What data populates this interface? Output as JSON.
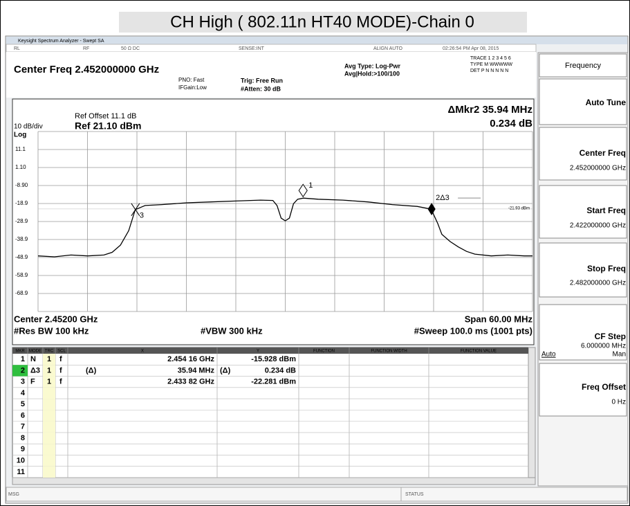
{
  "screen": {
    "title": "CH High ( 802.11n HT40 MODE)-Chain 0",
    "window_title": "Keysight Spectrum Analyzer - Swept SA",
    "toolbar": [
      "RL",
      "RF",
      "50 Ω DC",
      "SENSE:INT",
      "ALIGN AUTO",
      "02:26:54 PM Apr 08, 2015"
    ],
    "header": {
      "center_freq": "Center Freq 2.452000000 GHz",
      "pno": "PNO: Fast",
      "ifgain": "IFGain:Low",
      "trig": "Trig: Free Run",
      "atten": "#Atten: 30 dB",
      "avg_type": "Avg Type: Log-Pwr",
      "avg_hold": "Avg|Hold:>100/100",
      "trace": "TRACE 1 2 3 4 5 6",
      "type": "TYPE M WWWWW",
      "det": "DET P N N N N N"
    },
    "plot": {
      "ref_offset": "Ref Offset 11.1 dB",
      "scale": "10 dB/div",
      "ref_level": "Ref 21.10 dBm",
      "log": "Log",
      "delta_marker": "ΔMkr2 35.94 MHz",
      "delta_value": "0.234 dB",
      "center": "Center 2.45200 GHz",
      "res_bw": "#Res BW 100 kHz",
      "vbw": "#VBW 300 kHz",
      "span": "Span 60.00 MHz",
      "sweep": "#Sweep 100.0 ms (1001 pts)",
      "ylim": [
        -78.9,
        21.1
      ],
      "yticks": [
        11.1,
        {
          "value": 1.1,
          "label": "1.10"
        },
        {
          "value": -8.9,
          "label": "-8.90"
        },
        -18.9,
        -28.9,
        -38.9,
        -48.9,
        -58.9,
        -68.9
      ],
      "xlim": [
        2.422,
        2.482
      ],
      "xticks": [
        2.422,
        2.428,
        2.434,
        2.44,
        2.446,
        2.452,
        2.458,
        2.464,
        2.47,
        2.476,
        2.482
      ],
      "grid": true,
      "trace_color": "#000000",
      "trace": {
        "x": [
          2.422,
          2.424,
          2.426,
          2.428,
          2.43,
          2.431,
          2.432,
          2.433,
          2.4338,
          2.435,
          2.437,
          2.44,
          2.443,
          2.446,
          2.449,
          2.4505,
          2.451,
          2.4515,
          2.452,
          2.4525,
          2.453,
          2.4535,
          2.4542,
          2.456,
          2.459,
          2.462,
          2.465,
          2.468,
          2.4697,
          2.4705,
          2.471,
          2.472,
          2.473,
          2.474,
          2.475,
          2.477,
          2.479,
          2.481,
          2.482
        ],
        "y": [
          -48,
          -48.5,
          -47.5,
          -48,
          -47.5,
          -46,
          -42,
          -34,
          -22.3,
          -20,
          -19.5,
          -18.5,
          -18,
          -17.5,
          -17,
          -17.2,
          -20,
          -27,
          -28.5,
          -27,
          -19,
          -16.5,
          -15.9,
          -16.5,
          -17,
          -18,
          -19.5,
          -20.5,
          -22,
          -30,
          -36,
          -40,
          -43,
          -45.5,
          -47,
          -48,
          -47.5,
          -48,
          -48
        ]
      },
      "markers": [
        {
          "label": "1",
          "x": 2.45416,
          "y": -15.928,
          "style": "open"
        },
        {
          "label": "2Δ3",
          "x": 2.46976,
          "y": -22.0,
          "style": "filled"
        },
        {
          "label": "3",
          "x": 2.43382,
          "y": -22.281,
          "style": "cross"
        }
      ],
      "display_line": {
        "value": -21.93,
        "label": "-21.93 dBm"
      }
    },
    "marker_table": {
      "header": [
        "MKR",
        "MODE",
        "TRC",
        "SCL",
        "X",
        "Y",
        "FUNCTION",
        "FUNCTION WIDTH",
        "FUNCTION VALUE"
      ],
      "rows": [
        {
          "mkr": "1",
          "mode": "N",
          "trc": "1",
          "scl": "f",
          "x": "2.454 16 GHz",
          "y": "-15.928 dBm"
        },
        {
          "mkr": "2",
          "mode": "Δ3",
          "trc": "1",
          "scl": "f",
          "xref": "(Δ)",
          "x": "35.94 MHz",
          "yref": "(Δ)",
          "y": "0.234 dB"
        },
        {
          "mkr": "3",
          "mode": "F",
          "trc": "1",
          "scl": "f",
          "x": "2.433 82 GHz",
          "y": "-22.281 dBm"
        },
        {
          "mkr": "4"
        },
        {
          "mkr": "5"
        },
        {
          "mkr": "6"
        },
        {
          "mkr": "7"
        },
        {
          "mkr": "8"
        },
        {
          "mkr": "9"
        },
        {
          "mkr": "10"
        },
        {
          "mkr": "11"
        }
      ]
    },
    "softkeys": {
      "menu": "Frequency",
      "auto_tune": "Auto Tune",
      "center_freq": {
        "label": "Center Freq",
        "value": "2.452000000 GHz"
      },
      "start_freq": {
        "label": "Start Freq",
        "value": "2.422000000 GHz"
      },
      "stop_freq": {
        "label": "Stop Freq",
        "value": "2.482000000 GHz"
      },
      "cf_step": {
        "label": "CF Step",
        "value": "6.000000 MHz",
        "auto": "Auto",
        "man": "Man"
      },
      "freq_offset": {
        "label": "Freq Offset",
        "value": "0 Hz"
      }
    },
    "status_bar": {
      "msg": "MSG",
      "status": "STATUS"
    }
  }
}
